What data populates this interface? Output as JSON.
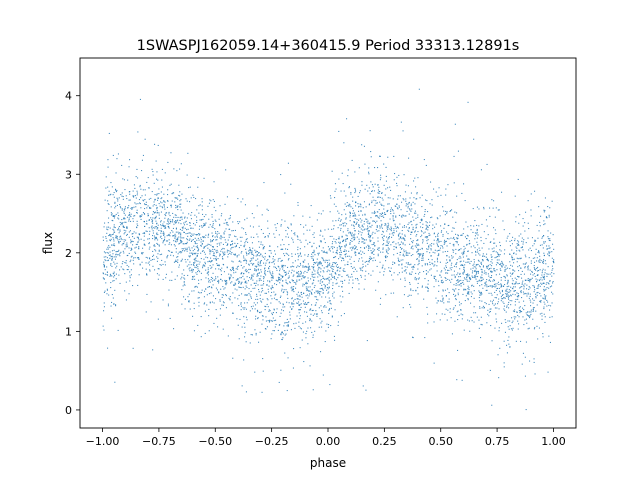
{
  "chart_data": {
    "type": "scatter",
    "title": "1SWASPJ162059.14+360415.9 Period 33313.12891s",
    "xlabel": "phase",
    "ylabel": "flux",
    "xlim": [
      -1.1,
      1.1
    ],
    "ylim": [
      -0.23,
      4.48
    ],
    "xticks": [
      -1.0,
      -0.75,
      -0.5,
      -0.25,
      0.0,
      0.25,
      0.5,
      0.75,
      1.0
    ],
    "xtick_labels": [
      "−1.00",
      "−0.75",
      "−0.50",
      "−0.25",
      "0.00",
      "0.25",
      "0.50",
      "0.75",
      "1.00"
    ],
    "yticks": [
      0,
      1,
      2,
      3,
      4
    ],
    "ytick_labels": [
      "0",
      "1",
      "2",
      "3",
      "4"
    ],
    "grid": false,
    "point_color": "#1f77b4",
    "mean_trend": {
      "phase": [
        -1.0,
        -0.9,
        -0.8,
        -0.7,
        -0.6,
        -0.5,
        -0.4,
        -0.3,
        -0.2,
        -0.1,
        0.0,
        0.1,
        0.2,
        0.3,
        0.4,
        0.5,
        0.6,
        0.7,
        0.8,
        0.9,
        1.0
      ],
      "flux": [
        1.95,
        2.3,
        2.4,
        2.3,
        2.1,
        1.95,
        1.82,
        1.7,
        1.6,
        1.58,
        1.8,
        2.2,
        2.38,
        2.3,
        2.1,
        1.95,
        1.82,
        1.7,
        1.62,
        1.6,
        1.85
      ]
    },
    "flux_scatter_std": 0.35,
    "flux_range": [
      0,
      4.2
    ]
  }
}
